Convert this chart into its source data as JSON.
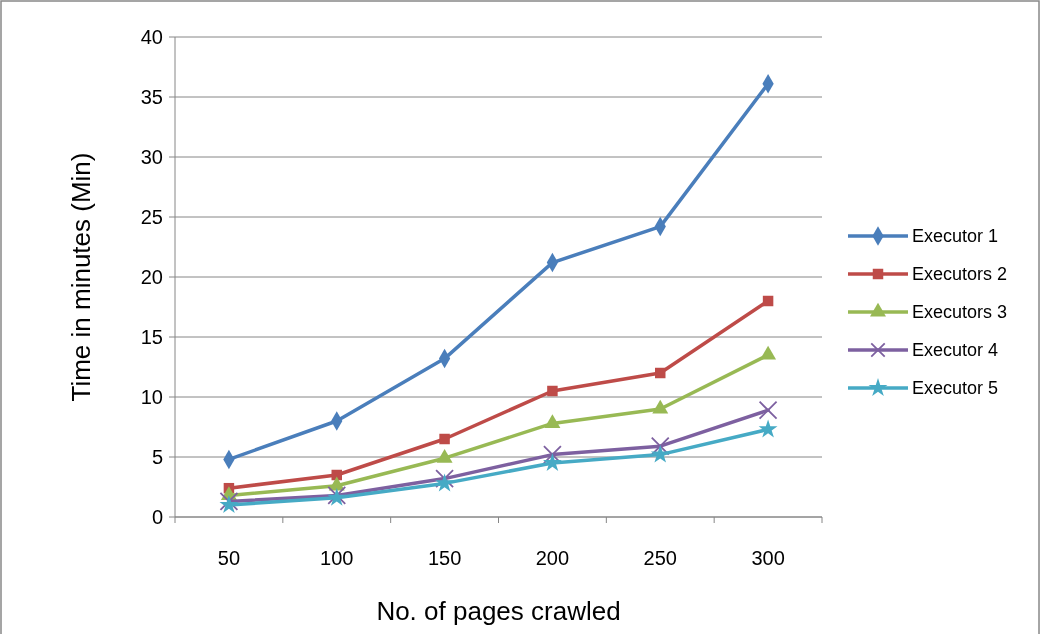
{
  "chart_data": {
    "type": "line",
    "xlabel": "No. of pages crawled",
    "ylabel": "Time in minutes (Min)",
    "categories": [
      "50",
      "100",
      "150",
      "200",
      "250",
      "300"
    ],
    "ylim": [
      0,
      40
    ],
    "yticks": [
      0,
      5,
      10,
      15,
      20,
      25,
      30,
      35,
      40
    ],
    "grid": "y",
    "legend": "right",
    "line_style": "solid",
    "series": [
      {
        "name": "Executor 1",
        "color": "#4a7ebb",
        "marker": "diamond",
        "values": [
          4.8,
          8,
          13.2,
          21.2,
          24.2,
          36.1
        ]
      },
      {
        "name": "Executors 2",
        "color": "#be4b48",
        "marker": "square",
        "values": [
          2.4,
          3.5,
          6.5,
          10.5,
          12,
          18
        ]
      },
      {
        "name": "Executors 3",
        "color": "#98b954",
        "marker": "triangle",
        "values": [
          1.8,
          2.6,
          4.9,
          7.8,
          9,
          13.5
        ]
      },
      {
        "name": "Executor 4",
        "color": "#7d60a0",
        "marker": "cross",
        "values": [
          1.3,
          1.8,
          3.2,
          5.2,
          5.9,
          8.9
        ]
      },
      {
        "name": "Executor 5",
        "color": "#46aac5",
        "marker": "star",
        "values": [
          1.0,
          1.6,
          2.8,
          4.5,
          5.2,
          7.3
        ]
      }
    ]
  }
}
